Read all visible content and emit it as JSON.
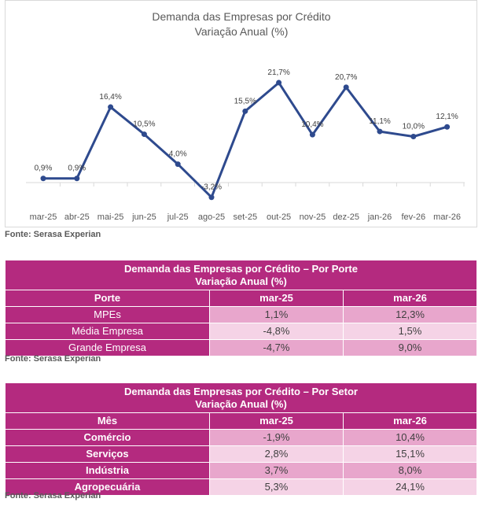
{
  "chart_data": {
    "type": "line",
    "title": "Demanda das Empresas por Crédito",
    "subtitle": "Variação Anual (%)",
    "categories": [
      "mar-25",
      "abr-25",
      "mai-25",
      "jun-25",
      "jul-25",
      "ago-25",
      "set-25",
      "out-25",
      "nov-25",
      "dez-25",
      "jan-26",
      "fev-26",
      "mar-26"
    ],
    "series": [
      {
        "values": [
          0.9,
          0.9,
          16.4,
          10.5,
          4.0,
          -3.2,
          15.5,
          21.7,
          10.4,
          20.7,
          11.1,
          10.0,
          12.1
        ],
        "labels": [
          "0,9%",
          "0,9%",
          "16,4%",
          "10,5%",
          "4,0%",
          "-3,2%",
          "15,5%",
          "21,7%",
          "10,4%",
          "20,7%",
          "11,1%",
          "10,0%",
          "12,1%"
        ],
        "color": "#2e4a8e"
      }
    ],
    "ylim": [
      -4,
      25
    ],
    "grid": false,
    "legend": "none"
  },
  "chart_source": "Fonte: Serasa Experian",
  "table_porte": {
    "title": "Demanda das Empresas por Crédito – Por Porte",
    "subtitle": "Variação Anual (%)",
    "headers": [
      "Porte",
      "mar-25",
      "mar-26"
    ],
    "rows": [
      [
        "MPEs",
        "1,1%",
        "12,3%"
      ],
      [
        "Média Empresa",
        "-4,8%",
        "1,5%"
      ],
      [
        "Grande Empresa",
        "-4,7%",
        "9,0%"
      ]
    ],
    "source": "Fonte: Serasa Experian"
  },
  "table_setor": {
    "title": "Demanda das Empresas por Crédito – Por Setor",
    "subtitle": "Variação Anual (%)",
    "headers": [
      "Mês",
      "mar-25",
      "mar-26"
    ],
    "rows": [
      [
        "Comércio",
        "-1,9%",
        "10,4%"
      ],
      [
        "Serviços",
        "2,8%",
        "15,1%"
      ],
      [
        "Indústria",
        "3,7%",
        "8,0%"
      ],
      [
        "Agropecuária",
        "5,3%",
        "24,1%"
      ]
    ],
    "source": "Fonte: Serasa Experian"
  },
  "colors": {
    "line": "#2e4a8e",
    "header": "#b42a7f",
    "cell_dark": "#e8a6cc",
    "cell_light": "#f5d3e6"
  }
}
